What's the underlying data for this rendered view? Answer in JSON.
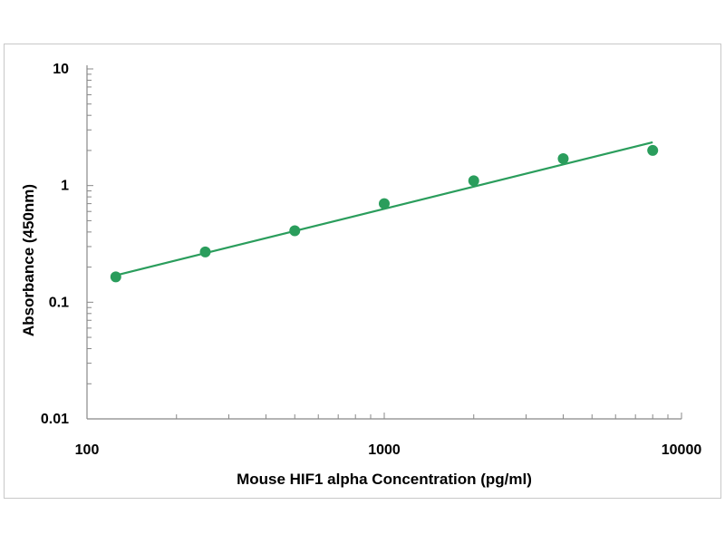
{
  "chart_data": {
    "type": "scatter",
    "title": "",
    "xlabel": "Mouse HIF1 alpha Concentration (pg/ml)",
    "ylabel": "Absorbance (450nm)",
    "x_scale": "log",
    "y_scale": "log",
    "xlim": [
      100,
      10000
    ],
    "ylim": [
      0.01,
      10
    ],
    "x_ticks": [
      "100",
      "1000",
      "10000"
    ],
    "y_ticks": [
      "10",
      "1",
      "0.1",
      "0.01"
    ],
    "grid": false,
    "legend": "none",
    "series": [
      {
        "x": [
          125,
          250,
          500,
          1000,
          2000,
          4000,
          8000
        ],
        "y": [
          0.165,
          0.27,
          0.41,
          0.7,
          1.1,
          1.7,
          2.0
        ]
      }
    ],
    "trendline": {
      "x": [
        125,
        8000
      ],
      "y": [
        0.17,
        2.35
      ]
    },
    "colors": {
      "points": "#2a9d5c",
      "trendline": "#2a9d5c",
      "axis": "#888888"
    }
  }
}
